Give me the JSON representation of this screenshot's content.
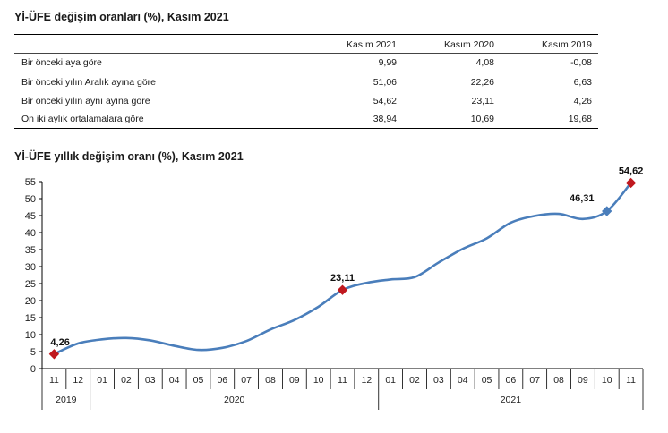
{
  "table": {
    "title": "Yİ-ÜFE değişim oranları (%), Kasım 2021",
    "columns": [
      "Kasım 2021",
      "Kasım 2020",
      "Kasım 2019"
    ],
    "rows": [
      {
        "label": "Bir önceki aya göre",
        "values": [
          "9,99",
          "4,08",
          "-0,08"
        ]
      },
      {
        "label": "Bir önceki yılın Aralık ayına göre",
        "values": [
          "51,06",
          "22,26",
          "6,63"
        ]
      },
      {
        "label": "Bir önceki yılın aynı ayına göre",
        "values": [
          "54,62",
          "23,11",
          "4,26"
        ]
      },
      {
        "label": "On iki aylık ortalamalara göre",
        "values": [
          "38,94",
          "10,69",
          "19,68"
        ]
      }
    ]
  },
  "chart_data": {
    "type": "line",
    "title": "Yİ-ÜFE yıllık değişim oranı (%), Kasım 2021",
    "categories": [
      "11",
      "12",
      "01",
      "02",
      "03",
      "04",
      "05",
      "06",
      "07",
      "08",
      "09",
      "10",
      "11",
      "12",
      "01",
      "02",
      "03",
      "04",
      "05",
      "06",
      "07",
      "08",
      "09",
      "10",
      "11"
    ],
    "years": [
      {
        "label": "2019",
        "count": 2
      },
      {
        "label": "2020",
        "count": 12
      },
      {
        "label": "2021",
        "count": 11
      }
    ],
    "series": [
      {
        "values": [
          4.26,
          7.4,
          8.6,
          9.0,
          8.3,
          6.7,
          5.5,
          6.1,
          8.1,
          11.5,
          14.3,
          18.2,
          23.11,
          25.2,
          26.2,
          26.9,
          31.2,
          35.2,
          38.3,
          42.9,
          44.9,
          45.5,
          44.0,
          46.31,
          54.62
        ]
      }
    ],
    "ylim": [
      0,
      55
    ],
    "yticks": [
      0,
      5,
      10,
      15,
      20,
      25,
      30,
      35,
      40,
      45,
      50,
      55
    ],
    "annotations": [
      {
        "index": 0,
        "label": "4,26",
        "marker": "red"
      },
      {
        "index": 12,
        "label": "23,11",
        "marker": "red"
      },
      {
        "index": 23,
        "label": "46,31",
        "marker": "blue"
      },
      {
        "index": 24,
        "label": "54,62",
        "marker": "red"
      }
    ],
    "colors": {
      "line": "#4a7ebb",
      "marker_red": "#c0191f",
      "marker_blue": "#4a7ebb",
      "grid": "#000000"
    }
  }
}
